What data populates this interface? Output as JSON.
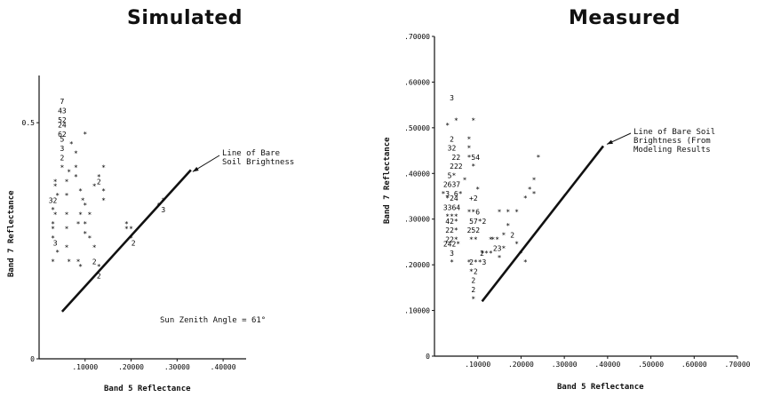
{
  "chart_data": [
    {
      "type": "scatter",
      "title": "Simulated",
      "xlabel": "Band 5 Reflectance",
      "ylabel": "Band 7 Reflectance",
      "xlim": [
        0,
        0.45
      ],
      "ylim": [
        0,
        0.6
      ],
      "x_ticks": [
        {
          "v": 0.1,
          "label": ".10000"
        },
        {
          "v": 0.2,
          "label": ".20000"
        },
        {
          "v": 0.3,
          "label": ".30000"
        },
        {
          "v": 0.4,
          "label": ".40000"
        }
      ],
      "y_ticks": [
        {
          "v": 0,
          "label": "0"
        },
        {
          "v": 0.5,
          "label": "0.5"
        }
      ],
      "line": {
        "label": "Line of Bare Soil Brightness",
        "x": [
          0.05,
          0.33
        ],
        "y": [
          0.1,
          0.4
        ]
      },
      "annotation": "Sun Zenith Angle = 61°",
      "points": [
        [
          0.05,
          0.54,
          "7"
        ],
        [
          0.05,
          0.52,
          "43"
        ],
        [
          0.05,
          0.5,
          "52"
        ],
        [
          0.05,
          0.49,
          "24"
        ],
        [
          0.05,
          0.47,
          "62"
        ],
        [
          0.05,
          0.46,
          "5"
        ],
        [
          0.05,
          0.44,
          "3"
        ],
        [
          0.05,
          0.42,
          "2"
        ],
        [
          0.05,
          0.4,
          "*"
        ],
        [
          0.035,
          0.37,
          "*"
        ],
        [
          0.035,
          0.36,
          "*"
        ],
        [
          0.04,
          0.34,
          "*"
        ],
        [
          0.03,
          0.33,
          "32"
        ],
        [
          0.03,
          0.31,
          "*"
        ],
        [
          0.035,
          0.3,
          "*"
        ],
        [
          0.03,
          0.28,
          "*"
        ],
        [
          0.03,
          0.27,
          "*"
        ],
        [
          0.03,
          0.25,
          "*"
        ],
        [
          0.035,
          0.24,
          "3"
        ],
        [
          0.04,
          0.22,
          "*"
        ],
        [
          0.03,
          0.2,
          "*"
        ],
        [
          0.06,
          0.37,
          "*"
        ],
        [
          0.06,
          0.34,
          "*"
        ],
        [
          0.06,
          0.3,
          "*"
        ],
        [
          0.07,
          0.45,
          "*"
        ],
        [
          0.065,
          0.39,
          "*"
        ],
        [
          0.06,
          0.27,
          "*"
        ],
        [
          0.06,
          0.23,
          "*"
        ],
        [
          0.065,
          0.2,
          "*"
        ],
        [
          0.08,
          0.43,
          "*"
        ],
        [
          0.08,
          0.4,
          "*"
        ],
        [
          0.08,
          0.38,
          "*"
        ],
        [
          0.09,
          0.35,
          "*"
        ],
        [
          0.095,
          0.33,
          "*"
        ],
        [
          0.09,
          0.3,
          "*"
        ],
        [
          0.085,
          0.28,
          "*"
        ],
        [
          0.085,
          0.2,
          "*"
        ],
        [
          0.09,
          0.19,
          "*"
        ],
        [
          0.1,
          0.47,
          "*"
        ],
        [
          0.1,
          0.32,
          "*"
        ],
        [
          0.1,
          0.28,
          "*"
        ],
        [
          0.1,
          0.26,
          "*"
        ],
        [
          0.11,
          0.3,
          "*"
        ],
        [
          0.11,
          0.25,
          "*"
        ],
        [
          0.12,
          0.36,
          "*"
        ],
        [
          0.13,
          0.38,
          "*"
        ],
        [
          0.13,
          0.37,
          "2"
        ],
        [
          0.14,
          0.4,
          "*"
        ],
        [
          0.14,
          0.35,
          "*"
        ],
        [
          0.14,
          0.33,
          "*"
        ],
        [
          0.12,
          0.23,
          "*"
        ],
        [
          0.12,
          0.2,
          "2"
        ],
        [
          0.13,
          0.19,
          "*"
        ],
        [
          0.13,
          0.17,
          "2"
        ],
        [
          0.19,
          0.28,
          "*"
        ],
        [
          0.19,
          0.27,
          "*"
        ],
        [
          0.2,
          0.27,
          "*"
        ],
        [
          0.2,
          0.25,
          "*"
        ],
        [
          0.205,
          0.24,
          "2"
        ],
        [
          0.26,
          0.32,
          "*"
        ],
        [
          0.27,
          0.31,
          "3"
        ],
        [
          0.27,
          0.33,
          "*"
        ]
      ]
    },
    {
      "type": "scatter",
      "title": "Measured",
      "xlabel": "Band 5 Reflectance",
      "ylabel": "Band 7 Reflectance",
      "xlim": [
        0,
        0.7
      ],
      "ylim": [
        0,
        0.7
      ],
      "x_ticks": [
        {
          "v": 0.1,
          "label": ".10000"
        },
        {
          "v": 0.2,
          "label": ".20000"
        },
        {
          "v": 0.3,
          "label": ".30000"
        },
        {
          "v": 0.4,
          "label": ".40000"
        },
        {
          "v": 0.5,
          "label": ".50000"
        },
        {
          "v": 0.6,
          "label": ".60000"
        },
        {
          "v": 0.7,
          "label": ".70000"
        }
      ],
      "y_ticks": [
        {
          "v": 0,
          "label": "0"
        },
        {
          "v": 0.1,
          "label": ".10000"
        },
        {
          "v": 0.2,
          "label": ".20000"
        },
        {
          "v": 0.3,
          "label": ".30000"
        },
        {
          "v": 0.4,
          "label": ".40000"
        },
        {
          "v": 0.5,
          "label": ".50000"
        },
        {
          "v": 0.6,
          "label": ".60000"
        },
        {
          "v": 0.7,
          "label": ".70000"
        }
      ],
      "line": {
        "label": "Line of Bare Soil Brightness (From Modeling Results",
        "x": [
          0.11,
          0.39
        ],
        "y": [
          0.12,
          0.46
        ]
      },
      "points": [
        [
          0.04,
          0.56,
          "3"
        ],
        [
          0.05,
          0.51,
          "*"
        ],
        [
          0.03,
          0.5,
          "*"
        ],
        [
          0.09,
          0.51,
          "*"
        ],
        [
          0.04,
          0.47,
          "2"
        ],
        [
          0.04,
          0.45,
          "32"
        ],
        [
          0.05,
          0.43,
          "22"
        ],
        [
          0.05,
          0.41,
          "222"
        ],
        [
          0.04,
          0.39,
          "5*"
        ],
        [
          0.04,
          0.37,
          "2637"
        ],
        [
          0.04,
          0.35,
          "*3 6*"
        ],
        [
          0.04,
          0.34,
          "*24"
        ],
        [
          0.04,
          0.32,
          "3364"
        ],
        [
          0.04,
          0.3,
          "***"
        ],
        [
          0.04,
          0.29,
          "42*"
        ],
        [
          0.04,
          0.27,
          "22*"
        ],
        [
          0.04,
          0.25,
          "22*"
        ],
        [
          0.04,
          0.24,
          "242*"
        ],
        [
          0.04,
          0.22,
          "3"
        ],
        [
          0.04,
          0.2,
          "*"
        ],
        [
          0.08,
          0.47,
          "*"
        ],
        [
          0.08,
          0.45,
          "*"
        ],
        [
          0.09,
          0.43,
          "*54"
        ],
        [
          0.09,
          0.41,
          "*"
        ],
        [
          0.09,
          0.34,
          "+2"
        ],
        [
          0.09,
          0.31,
          "**6"
        ],
        [
          0.1,
          0.29,
          "57*2"
        ],
        [
          0.09,
          0.27,
          "252"
        ],
        [
          0.09,
          0.25,
          "**"
        ],
        [
          0.1,
          0.36,
          "*"
        ],
        [
          0.07,
          0.38,
          "*"
        ],
        [
          0.08,
          0.2,
          "*"
        ],
        [
          0.11,
          0.22,
          "2"
        ],
        [
          0.1,
          0.2,
          "2**3"
        ],
        [
          0.09,
          0.18,
          "*2"
        ],
        [
          0.09,
          0.16,
          "2"
        ],
        [
          0.09,
          0.14,
          "2"
        ],
        [
          0.09,
          0.12,
          "*"
        ],
        [
          0.12,
          0.22,
          "***"
        ],
        [
          0.13,
          0.25,
          "*"
        ],
        [
          0.14,
          0.25,
          "**"
        ],
        [
          0.15,
          0.23,
          "23*"
        ],
        [
          0.15,
          0.21,
          "*"
        ],
        [
          0.16,
          0.26,
          "*"
        ],
        [
          0.17,
          0.28,
          "*"
        ],
        [
          0.15,
          0.31,
          "*"
        ],
        [
          0.17,
          0.31,
          "*"
        ],
        [
          0.19,
          0.31,
          "*"
        ],
        [
          0.18,
          0.26,
          "2"
        ],
        [
          0.19,
          0.24,
          "*"
        ],
        [
          0.2,
          0.22,
          "*"
        ],
        [
          0.21,
          0.2,
          "*"
        ],
        [
          0.21,
          0.34,
          "*"
        ],
        [
          0.22,
          0.36,
          "*"
        ],
        [
          0.23,
          0.35,
          "*"
        ],
        [
          0.24,
          0.43,
          "*"
        ],
        [
          0.23,
          0.38,
          "*"
        ]
      ]
    }
  ]
}
